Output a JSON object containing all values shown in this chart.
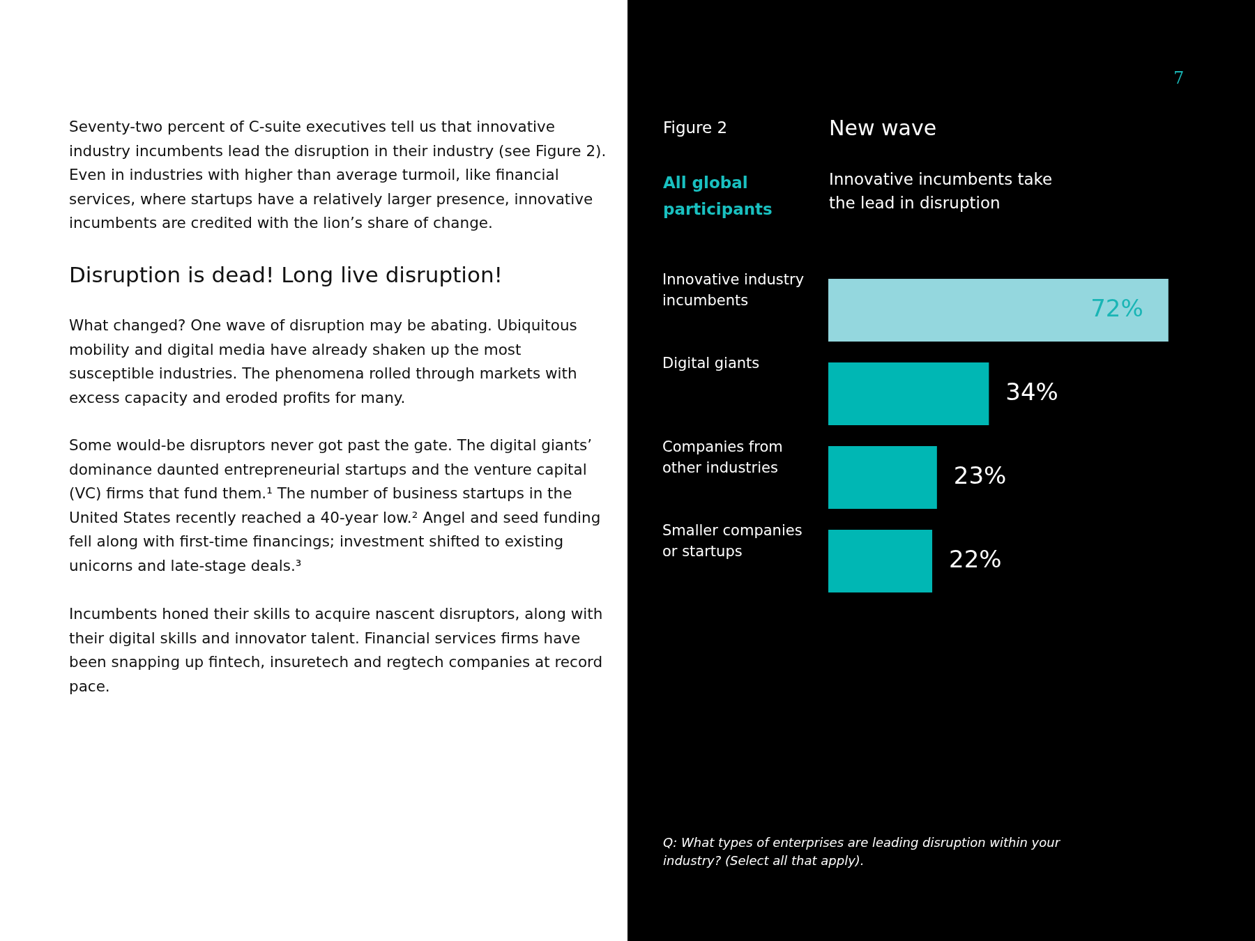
{
  "chart_data": {
    "type": "bar",
    "orientation": "horizontal",
    "title": "New wave",
    "subtitle": "Innovative incumbents take the lead in disruption",
    "categories": [
      "Innovative industry incumbents",
      "Digital giants",
      "Companies from other industries",
      "Smaller companies or startups"
    ],
    "values": [
      72,
      34,
      23,
      22
    ],
    "colors": [
      "#94d7de",
      "#00b7b4",
      "#00b7b4",
      "#00b7b4"
    ],
    "value_labels": [
      "72%",
      "34%",
      "23%",
      "22%"
    ],
    "annotations": [
      "7",
      "Figure 2",
      "All global participants",
      "Seventy-two percent of C-suite executives tell us that innovative industry incumbents lead the disruption in their industry (see Figure 2). Even in industries with higher than average turmoil, like financial services, where startups have a relatively larger presence, innovative incumbents are credited with the lion’s share of change.",
      "Disruption is dead! Long live disruption!",
      "What changed? One wave of disruption may be abating. Ubiquitous mobility and digital media have already shaken up the most susceptible industries. The phenomena rolled through markets with excess capacity and eroded profits for many.",
      "Some would-be disruptors never got past the gate. The digital giants’ dominance daunted entrepreneurial startups and the venture capital (VC) firms that fund them.¹ The number of business startups in the United States recently reached a 40-year low.² Angel and seed funding fell along with first-time financings; investment shifted to existing unicorns and late-stage deals.³",
      "Incumbents honed their skills to acquire nascent disruptors, along with their digital skills and innovator talent. Financial services firms have been snapping up fintech, insuretech and regtech companies at record pace.",
      "Q: What types of enterprises are leading disruption within your industry? (Select all that apply)."
    ]
  }
}
